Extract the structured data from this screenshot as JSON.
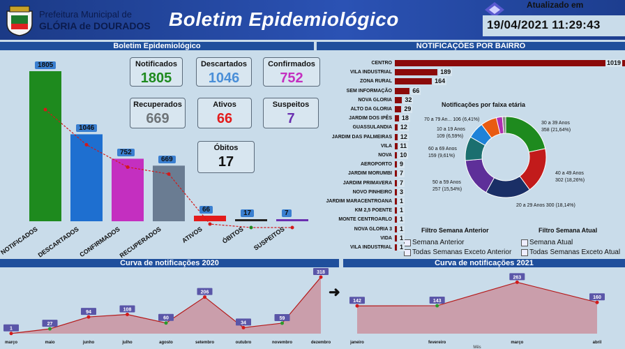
{
  "header": {
    "pref_line1": "Prefeitura Municipal de",
    "pref_line2": "GLÓRIA de DOURADOS",
    "title": "Boletim Epidemiológico",
    "updated_label": "Atualizado em",
    "updated_value": "19/04/2021 11:29:43"
  },
  "left_title": "Boletim Epidemiológico",
  "bars": {
    "categories": [
      "NOTIFICADOS",
      "DESCARTADOS",
      "CONFIRMADOS",
      "RECUPERADOS",
      "ATIVOS",
      "ÓBITOS",
      "SUSPEITOS"
    ],
    "values": [
      1805,
      1046,
      752,
      669,
      66,
      17,
      7
    ],
    "labels": [
      "1805",
      "1046",
      "752",
      "669",
      "66",
      "17",
      "7"
    ],
    "colors": [
      "#1e8a1e",
      "#1e6fd0",
      "#c42fc0",
      "#6a7c92",
      "#e31b1b",
      "#222222",
      "#6a2fb0"
    ]
  },
  "cards": {
    "notificados": {
      "title": "Notificados",
      "value": "1805"
    },
    "descartados": {
      "title": "Descartados",
      "value": "1046"
    },
    "confirmados": {
      "title": "Confirmados",
      "value": "752"
    },
    "recuperados": {
      "title": "Recuperados",
      "value": "669"
    },
    "ativos": {
      "title": "Ativos",
      "value": "66"
    },
    "suspeitos": {
      "title": "Suspeitos",
      "value": "7"
    },
    "obitos": {
      "title": "Óbitos",
      "value": "17"
    }
  },
  "bairro": {
    "title": "NOTIFICAÇÕES POR BAIRRO",
    "items": [
      {
        "name": "CENTRO",
        "value": "1019"
      },
      {
        "name": "VILA INDUSTRIAL",
        "value": "189"
      },
      {
        "name": "ZONA RURAL",
        "value": "164"
      },
      {
        "name": "SEM INFORMAÇÃO",
        "value": "66"
      },
      {
        "name": "NOVA GLORIA",
        "value": "32"
      },
      {
        "name": "ALTO DA GLORIA",
        "value": "29"
      },
      {
        "name": "JARDIM DOS IPÊS",
        "value": "18"
      },
      {
        "name": "GUASSULANDIA",
        "value": "12"
      },
      {
        "name": "JARDIM DAS PALMEIRAS",
        "value": "12"
      },
      {
        "name": "VILA",
        "value": "11"
      },
      {
        "name": "NOVA",
        "value": "10"
      },
      {
        "name": "AEROPORTO",
        "value": "9"
      },
      {
        "name": "JARDIM MORUMBI",
        "value": "7"
      },
      {
        "name": "JARDIM PRIMAVERA",
        "value": "7"
      },
      {
        "name": "NOVO PINHEIRO",
        "value": "3"
      },
      {
        "name": "JARDIM MARACENTROANA",
        "value": "1"
      },
      {
        "name": "KM 2,5 POENTE",
        "value": "1"
      },
      {
        "name": "MONTE CENTROARLO",
        "value": "1"
      },
      {
        "name": "NOVA GLORIA 3",
        "value": "1"
      },
      {
        "name": "VIDA",
        "value": "1"
      },
      {
        "name": "VILA INDUSTRIAL",
        "value": "1"
      }
    ]
  },
  "donut": {
    "title": "Notificações por faixa etária",
    "slices": [
      {
        "label": "30 a 39 Anos",
        "detail": "358 (21,64%)",
        "value": 358,
        "color": "#1e8a1e"
      },
      {
        "label": "40 a 49 Anos",
        "detail": "302 (18,26%)",
        "value": 302,
        "color": "#c21b1b"
      },
      {
        "label": "20 a 29 Anos",
        "detail": "20 a 29 Anos 300 (18,14%)",
        "value": 300,
        "color": "#1a2f66"
      },
      {
        "label": "50 a 59 Anos",
        "detail": "257 (15,54%)",
        "value": 257,
        "color": "#5e2f99"
      },
      {
        "label": "60 a 69 Anos",
        "detail": "159 (9,61%)",
        "value": 159,
        "color": "#1b6f6f"
      },
      {
        "label": "10 a 19 Anos",
        "detail": "109 (6,59%)",
        "value": 109,
        "color": "#1e82d8"
      },
      {
        "label": "70 a 79 An...",
        "detail": "106 (6,41%)",
        "value": 106,
        "color": "#e85b12"
      },
      {
        "label": "",
        "detail": "",
        "value": 40,
        "color": "#b02fb0"
      },
      {
        "label": "",
        "detail": "",
        "value": 22,
        "color": "#8a8a8a"
      }
    ]
  },
  "filters": {
    "prev_title": "Filtro Semana Anterior",
    "cur_title": "Filtro Semana Atual",
    "prev_opts": [
      "Semana Anterior",
      "Todas Semanas Exceto Anterior"
    ],
    "cur_opts": [
      "Semana Atual",
      "Todas Semanas Exceto Atual"
    ]
  },
  "curve2020": {
    "title": "Curva de notificações 2020",
    "months": [
      "março",
      "maio",
      "junho",
      "julho",
      "agosto",
      "setembro",
      "outubro",
      "novembro",
      "dezembro"
    ],
    "values": [
      1,
      27,
      94,
      108,
      60,
      206,
      34,
      59,
      318
    ],
    "labels": [
      "1",
      "27",
      "94",
      "108",
      "60",
      "206",
      "34",
      "59",
      "318"
    ]
  },
  "curve2021": {
    "title": "Curva de notificações 2021",
    "months": [
      "janeiro",
      "fevereiro",
      "março",
      "abril"
    ],
    "values": [
      142,
      143,
      263,
      160
    ],
    "labels": [
      "142",
      "143",
      "263",
      "160"
    ],
    "xlabel": "Mês"
  },
  "arrow": "➜",
  "chart_data": [
    {
      "type": "bar",
      "categories": [
        "NOTIFICADOS",
        "DESCARTADOS",
        "CONFIRMADOS",
        "RECUPERADOS",
        "ATIVOS",
        "ÓBITOS",
        "SUSPEITOS"
      ],
      "values": [
        1805,
        1046,
        752,
        669,
        66,
        17,
        7
      ],
      "title": "Boletim Epidemiológico"
    },
    {
      "type": "bar",
      "title": "NOTIFICAÇÕES POR BAIRRO",
      "categories": [
        "CENTRO",
        "VILA INDUSTRIAL",
        "ZONA RURAL",
        "SEM INFORMAÇÃO",
        "NOVA GLORIA",
        "ALTO DA GLORIA",
        "JARDIM DOS IPÊS",
        "GUASSULANDIA",
        "JARDIM DAS PALMEIRAS",
        "VILA",
        "NOVA",
        "AEROPORTO",
        "JARDIM MORUMBI",
        "JARDIM PRIMAVERA",
        "NOVO PINHEIRO",
        "JARDIM MARACENTROANA",
        "KM 2,5 POENTE",
        "MONTE CENTROARLO",
        "NOVA GLORIA 3",
        "VIDA",
        "VILA INDUSTRIAL"
      ],
      "values": [
        1019,
        189,
        164,
        66,
        32,
        29,
        18,
        12,
        12,
        11,
        10,
        9,
        7,
        7,
        3,
        1,
        1,
        1,
        1,
        1,
        1
      ]
    },
    {
      "type": "pie",
      "title": "Notificações por faixa etária",
      "categories": [
        "30 a 39 Anos",
        "40 a 49 Anos",
        "20 a 29 Anos",
        "50 a 59 Anos",
        "60 a 69 Anos",
        "10 a 19 Anos",
        "70 a 79 An..."
      ],
      "values": [
        358,
        302,
        300,
        257,
        159,
        109,
        106
      ]
    },
    {
      "type": "area",
      "title": "Curva de notificações 2020",
      "categories": [
        "março",
        "maio",
        "junho",
        "julho",
        "agosto",
        "setembro",
        "outubro",
        "novembro",
        "dezembro"
      ],
      "values": [
        1,
        27,
        94,
        108,
        60,
        206,
        34,
        59,
        318
      ]
    },
    {
      "type": "area",
      "title": "Curva de notificações 2021",
      "categories": [
        "janeiro",
        "fevereiro",
        "março",
        "abril"
      ],
      "values": [
        142,
        143,
        263,
        160
      ],
      "xlabel": "Mês"
    }
  ]
}
